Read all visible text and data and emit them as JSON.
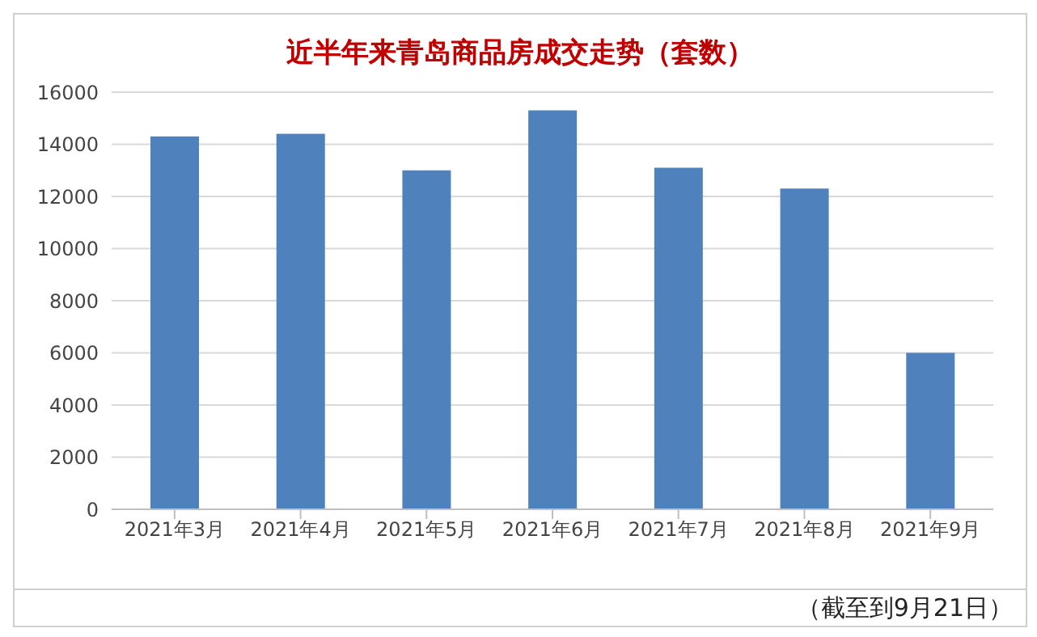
{
  "chart_data": {
    "type": "bar",
    "title": "近半年来青岛商品房成交走势（套数）",
    "categories": [
      "2021年3月",
      "2021年4月",
      "2021年5月",
      "2021年6月",
      "2021年7月",
      "2021年8月",
      "2021年9月"
    ],
    "values": [
      14300,
      14400,
      13000,
      15300,
      13100,
      12300,
      6000
    ],
    "color": "#4f81bd",
    "ylim": [
      0,
      16000
    ],
    "yticks": [
      0,
      2000,
      4000,
      6000,
      8000,
      10000,
      12000,
      14000,
      16000
    ],
    "grid": "y",
    "annotations": [
      "（截至到9月21日）"
    ]
  }
}
